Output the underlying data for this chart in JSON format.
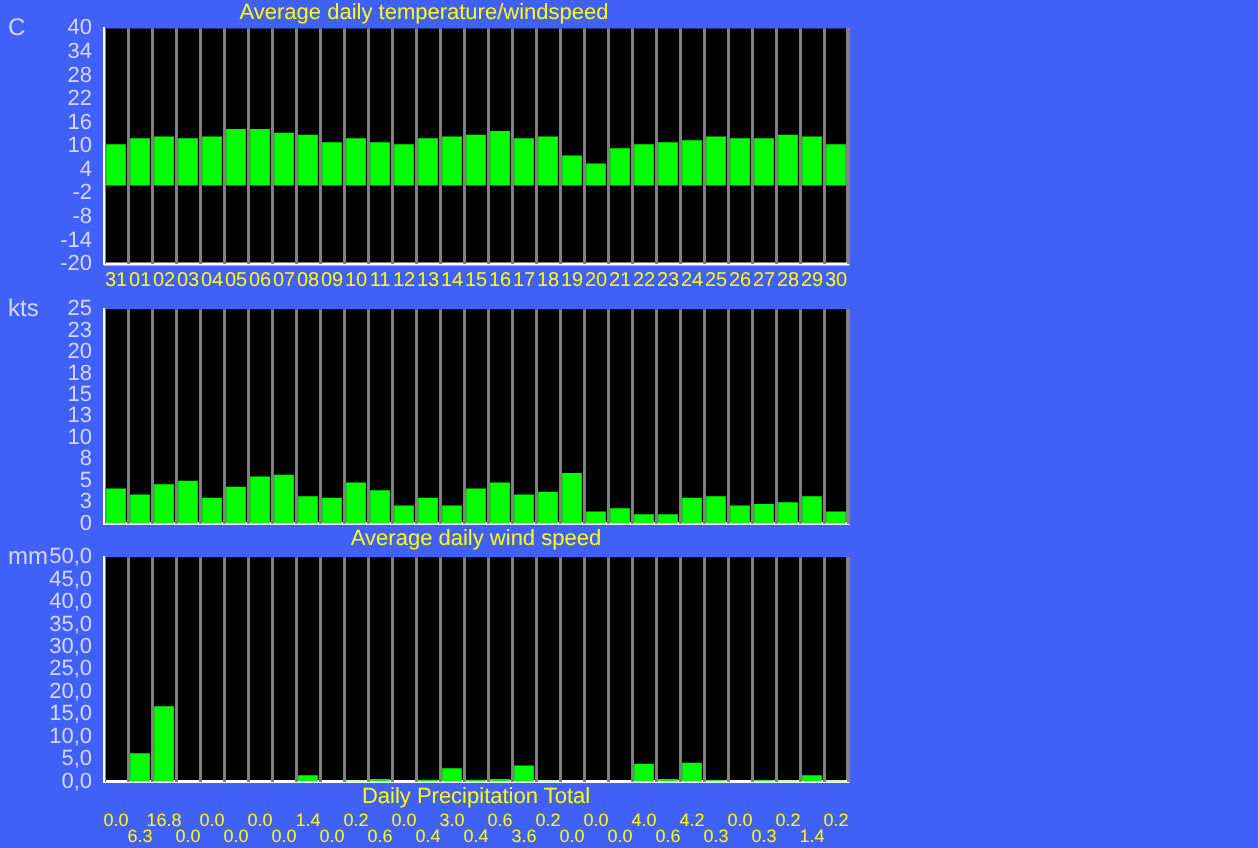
{
  "chart_data": [
    {
      "type": "bar",
      "title": "Average daily temperature/windspeed",
      "ylabel": "C",
      "categories": [
        "31",
        "01",
        "02",
        "03",
        "04",
        "05",
        "06",
        "07",
        "08",
        "09",
        "10",
        "11",
        "12",
        "13",
        "14",
        "15",
        "16",
        "17",
        "18",
        "19",
        "20",
        "21",
        "22",
        "23",
        "24",
        "25",
        "26",
        "27",
        "28",
        "29",
        "30"
      ],
      "series": [
        {
          "color": "#00ff00",
          "values": [
            10.5,
            12.0,
            12.5,
            12.0,
            12.5,
            14.4,
            14.4,
            13.4,
            12.9,
            11.0,
            12.0,
            11.0,
            10.5,
            12.0,
            12.5,
            12.9,
            13.9,
            12.0,
            12.5,
            7.6,
            5.6,
            9.5,
            10.5,
            11.0,
            11.5,
            12.5,
            12.0,
            12.0,
            12.9,
            12.5,
            10.5
          ]
        }
      ],
      "ylim": [
        -20,
        40
      ],
      "yticks": [
        -20,
        -14,
        -8,
        -2,
        4,
        10,
        16,
        22,
        28,
        34,
        40
      ],
      "grid": "x",
      "legend": false
    },
    {
      "type": "bar",
      "xlabel": "Average daily wind speed",
      "ylabel": "kts",
      "categories": [
        "31",
        "01",
        "02",
        "03",
        "04",
        "05",
        "06",
        "07",
        "08",
        "09",
        "10",
        "11",
        "12",
        "13",
        "14",
        "15",
        "16",
        "17",
        "18",
        "19",
        "20",
        "21",
        "22",
        "23",
        "24",
        "25",
        "26",
        "27",
        "28",
        "29",
        "30"
      ],
      "series": [
        {
          "color": "#00ff00",
          "values": [
            4.1,
            3.4,
            4.6,
            5.0,
            3.0,
            4.3,
            5.5,
            5.7,
            3.2,
            3.0,
            4.8,
            3.9,
            2.1,
            3.0,
            2.1,
            4.1,
            4.8,
            3.4,
            3.7,
            5.9,
            1.4,
            1.8,
            1.1,
            1.1,
            3.0,
            3.2,
            2.1,
            2.3,
            2.5,
            3.2,
            1.4
          ]
        }
      ],
      "ylim": [
        0,
        25
      ],
      "yticks": [
        0,
        {
          "value": 2.5,
          "label": "3"
        },
        5,
        {
          "value": 7.5,
          "label": "8"
        },
        10,
        {
          "value": 12.5,
          "label": "13"
        },
        15,
        {
          "value": 17.5,
          "label": "18"
        },
        20,
        {
          "value": 22.5,
          "label": "23"
        },
        25
      ],
      "grid": "x",
      "legend": false,
      "tick_labels": "y"
    },
    {
      "type": "bar",
      "xlabel": "Daily Precipitation Total",
      "ylabel": "mm",
      "categories": [
        "31",
        "01",
        "02",
        "03",
        "04",
        "05",
        "06",
        "07",
        "08",
        "09",
        "10",
        "11",
        "12",
        "13",
        "14",
        "15",
        "16",
        "17",
        "18",
        "19",
        "20",
        "21",
        "22",
        "23",
        "24",
        "25",
        "26",
        "27",
        "28",
        "29",
        "30"
      ],
      "series": [
        {
          "color": "#00ff00",
          "values": [
            0.0,
            6.3,
            16.8,
            0.0,
            0.0,
            0.0,
            0.0,
            0.0,
            1.4,
            0.0,
            0.2,
            0.6,
            0.0,
            0.4,
            3.0,
            0.4,
            0.6,
            3.6,
            0.2,
            0.0,
            0.0,
            0.0,
            4.0,
            0.6,
            4.2,
            0.3,
            0.0,
            0.3,
            0.2,
            1.4,
            0.2
          ],
          "value_labels": [
            "0.0",
            "6.3",
            "16.8",
            "0.0",
            "0.0",
            "0.0",
            "0.0",
            "0.0",
            "1.4",
            "0.0",
            "0.2",
            "0.6",
            "0.0",
            "0.4",
            "3.0",
            "0.4",
            "0.6",
            "3.6",
            "0.2",
            "0.0",
            "0.0",
            "0.0",
            "4.0",
            "0.6",
            "4.2",
            "0.3",
            "0.0",
            "0.3",
            "0.2",
            "1.4",
            "0.2"
          ]
        }
      ],
      "ylim": [
        0,
        50
      ],
      "yticks": [
        {
          "value": 0,
          "label": "0,0"
        },
        {
          "value": 5,
          "label": "5,0"
        },
        {
          "value": 10,
          "label": "10,0"
        },
        {
          "value": 15,
          "label": "15,0"
        },
        {
          "value": 20,
          "label": "20,0"
        },
        {
          "value": 25,
          "label": "25,0"
        },
        {
          "value": 30,
          "label": "30,0"
        },
        {
          "value": 35,
          "label": "35,0"
        },
        {
          "value": 40,
          "label": "40,0"
        },
        {
          "value": 45,
          "label": "45,0"
        },
        {
          "value": 50,
          "label": "50,0"
        }
      ],
      "grid": "x",
      "legend": false,
      "tick_labels": "y"
    }
  ]
}
